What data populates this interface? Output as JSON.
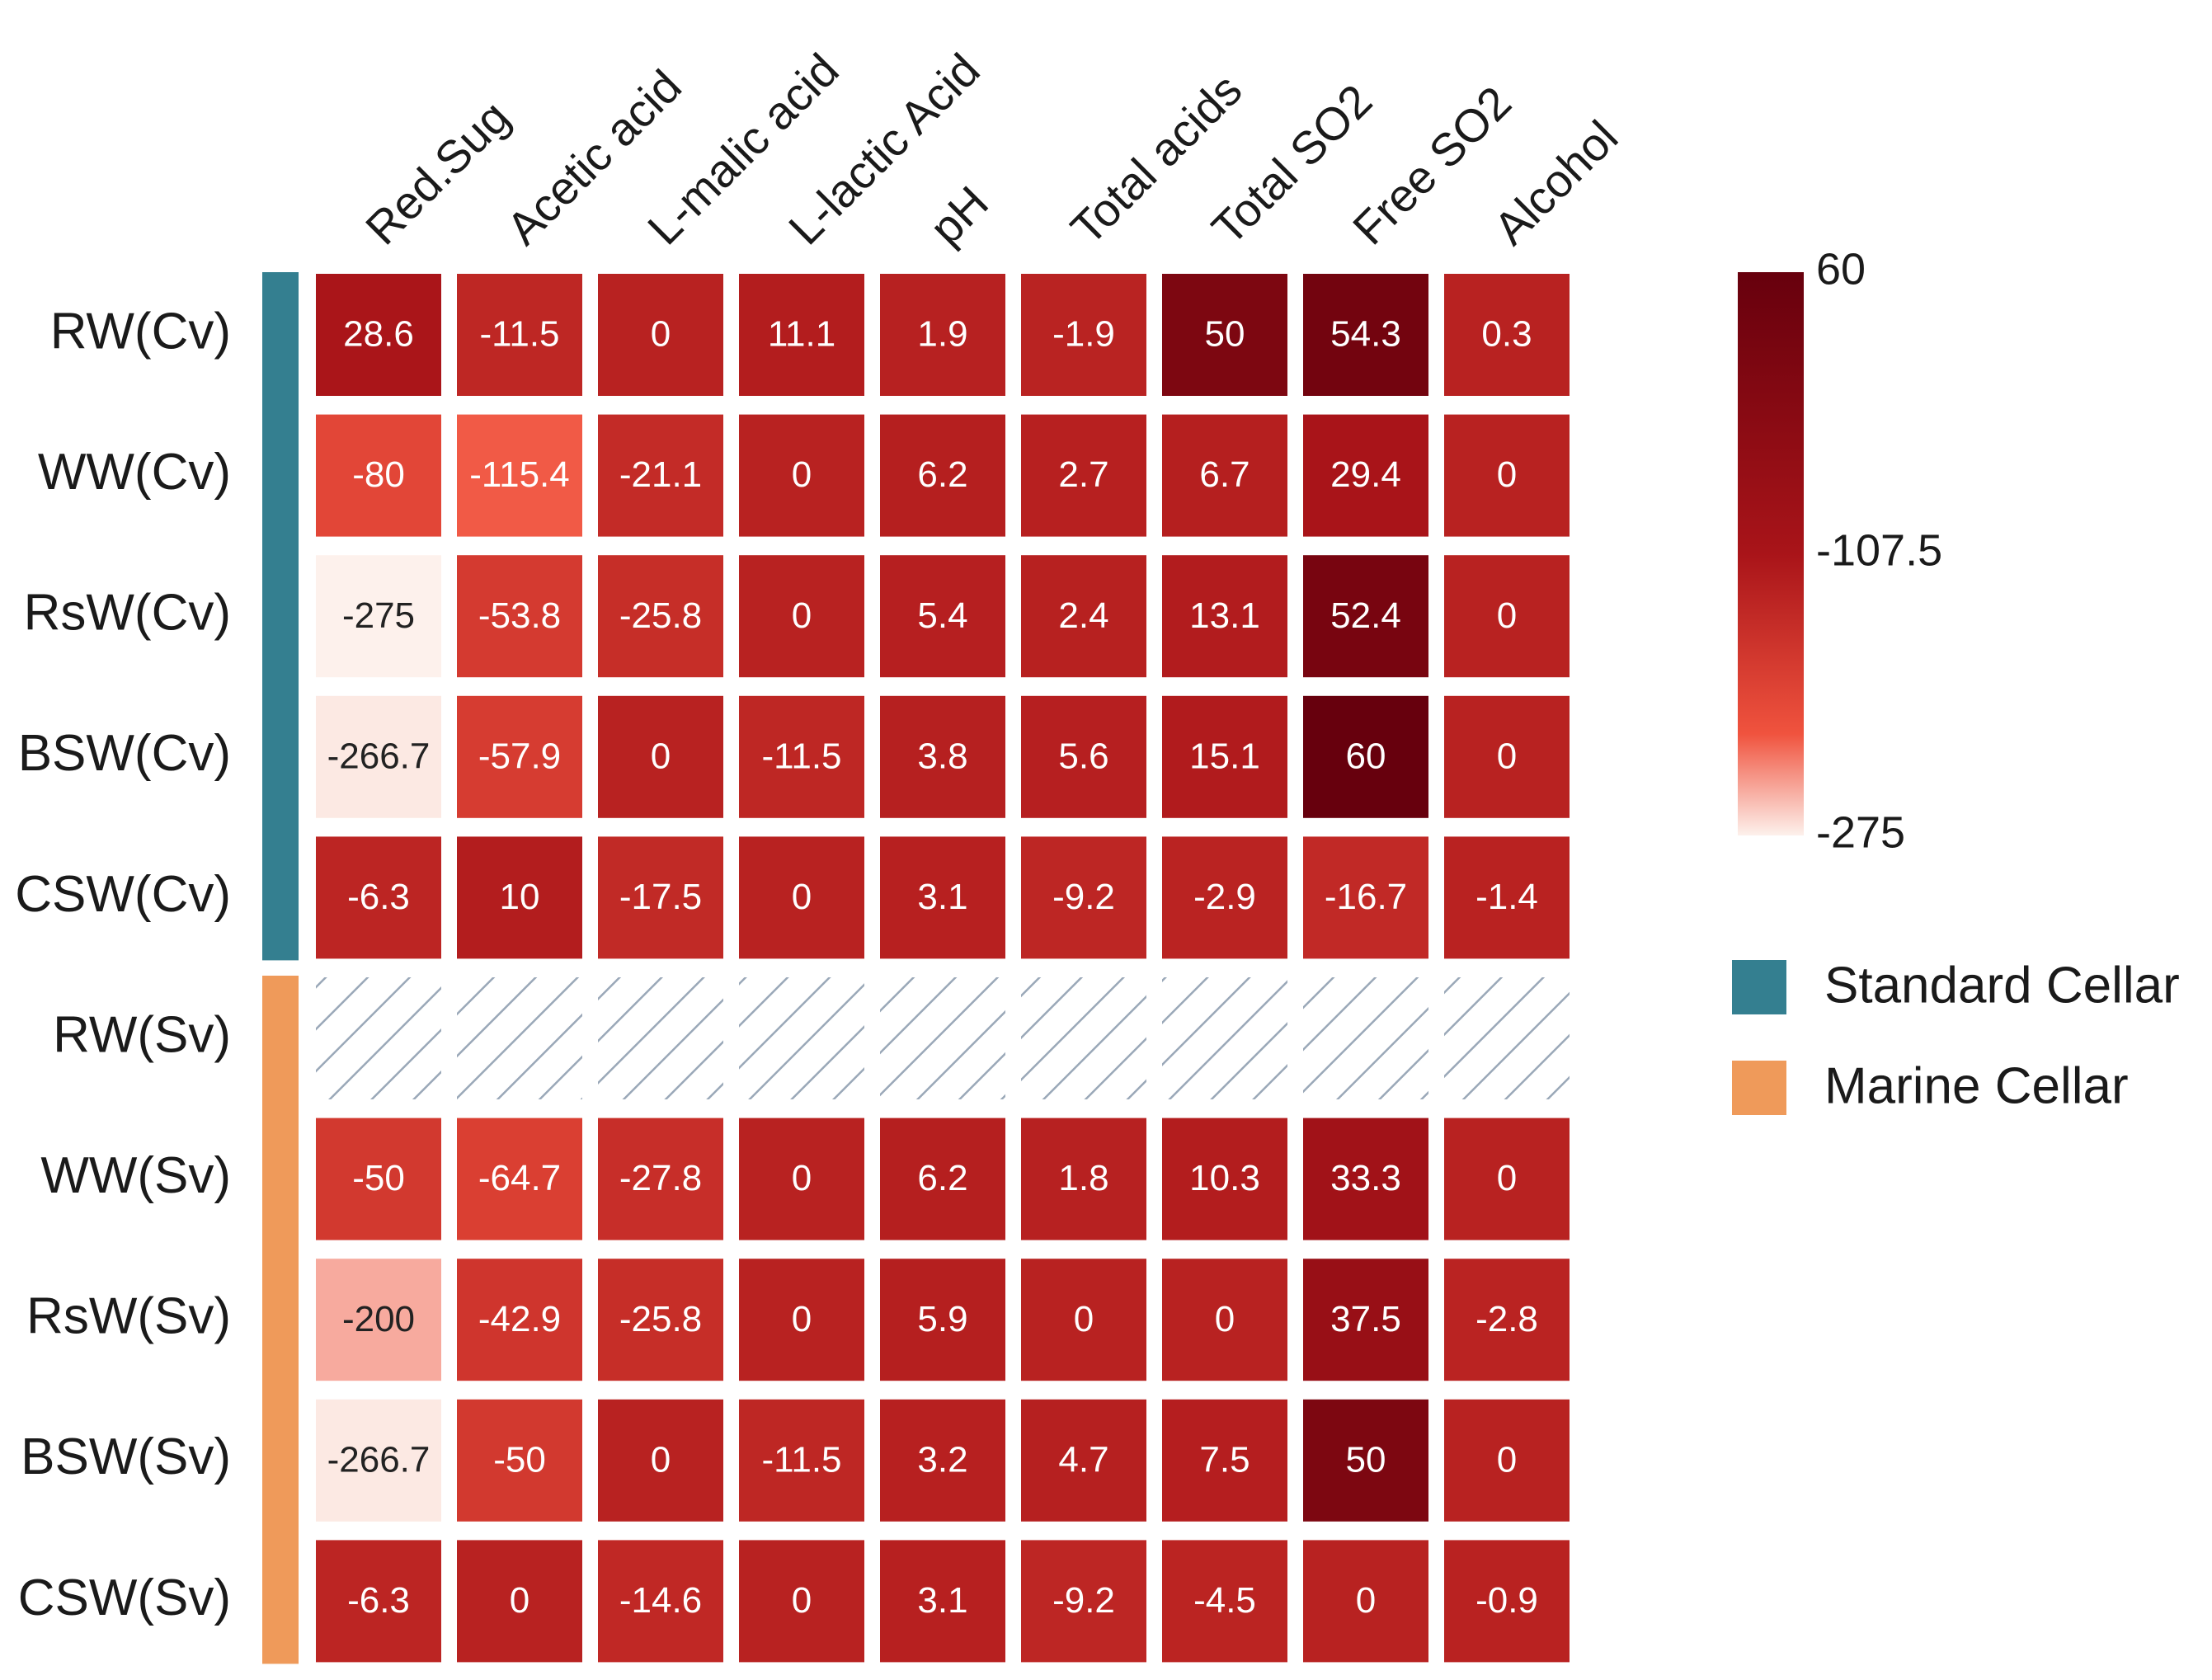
{
  "chart_data": {
    "type": "heatmap",
    "columns": [
      "Red.Sug",
      "Acetic acid",
      "L-malic acid",
      "L-lactic Acid",
      "pH",
      "Total acids",
      "Total SO2",
      "Free SO2",
      "Alcohol"
    ],
    "rows": [
      "RW(Cv)",
      "WW(Cv)",
      "RsW(Cv)",
      "BSW(Cv)",
      "CSW(Cv)",
      "RW(Sv)",
      "WW(Sv)",
      "RsW(Sv)",
      "BSW(Sv)",
      "CSW(Sv)"
    ],
    "row_groups": [
      0,
      0,
      0,
      0,
      0,
      1,
      1,
      1,
      1,
      1
    ],
    "values": [
      [
        28.6,
        -11.5,
        0,
        11.1,
        1.9,
        -1.9,
        50,
        54.3,
        0.3
      ],
      [
        -80,
        -115.4,
        -21.1,
        0,
        6.2,
        2.7,
        6.7,
        29.4,
        0
      ],
      [
        -275,
        -53.8,
        -25.8,
        0,
        5.4,
        2.4,
        13.1,
        52.4,
        0
      ],
      [
        -266.7,
        -57.9,
        0,
        -11.5,
        3.8,
        5.6,
        15.1,
        60,
        0
      ],
      [
        -6.3,
        10,
        -17.5,
        0,
        3.1,
        -9.2,
        -2.9,
        -16.7,
        -1.4
      ],
      [
        null,
        null,
        null,
        null,
        null,
        null,
        null,
        null,
        null
      ],
      [
        -50,
        -64.7,
        -27.8,
        0,
        6.2,
        1.8,
        10.3,
        33.3,
        0
      ],
      [
        -200,
        -42.9,
        -25.8,
        0,
        5.9,
        0,
        0,
        37.5,
        -2.8
      ],
      [
        -266.7,
        -50,
        0,
        -11.5,
        3.2,
        4.7,
        7.5,
        50,
        0
      ],
      [
        -6.3,
        0,
        -14.6,
        0,
        3.1,
        -9.2,
        -4.5,
        0,
        -0.9
      ]
    ],
    "value_labels": [
      [
        "28.6",
        "-11.5",
        "0",
        "11.1",
        "1.9",
        "-1.9",
        "50",
        "54.3",
        "0.3"
      ],
      [
        "-80",
        "-115.4",
        "-21.1",
        "0",
        "6.2",
        "2.7",
        "6.7",
        "29.4",
        "0"
      ],
      [
        "-275",
        "-53.8",
        "-25.8",
        "0",
        "5.4",
        "2.4",
        "13.1",
        "52.4",
        "0"
      ],
      [
        "-266.7",
        "-57.9",
        "0",
        "-11.5",
        "3.8",
        "5.6",
        "15.1",
        "60",
        "0"
      ],
      [
        "-6.3",
        "10",
        "-17.5",
        "0",
        "3.1",
        "-9.2",
        "-2.9",
        "-16.7",
        "-1.4"
      ],
      [
        "",
        "",
        "",
        "",
        "",
        "",
        "",
        "",
        ""
      ],
      [
        "-50",
        "-64.7",
        "-27.8",
        "0",
        "6.2",
        "1.8",
        "10.3",
        "33.3",
        "0"
      ],
      [
        "-200",
        "-42.9",
        "-25.8",
        "0",
        "5.9",
        "0",
        "0",
        "37.5",
        "-2.8"
      ],
      [
        "-266.7",
        "-50",
        "0",
        "-11.5",
        "3.2",
        "4.7",
        "7.5",
        "50",
        "0"
      ],
      [
        "-6.3",
        "0",
        "-14.6",
        "0",
        "3.1",
        "-9.2",
        "-4.5",
        "0",
        "-0.9"
      ]
    ],
    "color_scale": {
      "min": -275,
      "mid": -107.5,
      "max": 60,
      "tick_labels": [
        "60",
        "-107.5",
        "-275"
      ],
      "colors": [
        "#fdf1ec",
        "#f0533e",
        "#a91419",
        "#67000d"
      ]
    },
    "missing_pattern_color": "#9aa8b8",
    "groups": [
      {
        "name": "Standard Cellar",
        "color": "#347f90"
      },
      {
        "name": "Marine Cellar",
        "color": "#ef9a5a"
      }
    ],
    "legend_position": "right"
  }
}
